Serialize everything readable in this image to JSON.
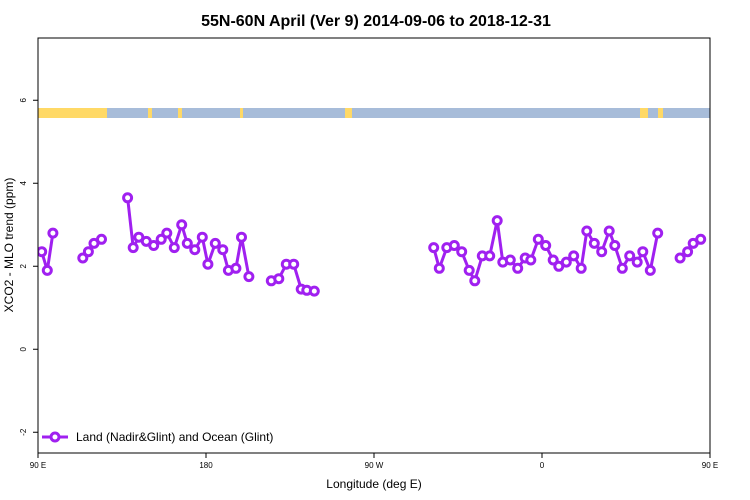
{
  "chart_data": {
    "type": "line",
    "title": "55N-60N April (Ver 9)   2014-09-06 to 2018-12-31",
    "xlabel": "Longitude (deg E)",
    "ylabel": "XCO2 - MLO trend (ppm)",
    "xlim": [
      90,
      450
    ],
    "ylim": [
      -2.5,
      7.5
    ],
    "x_ticks": [
      {
        "value": 90,
        "label": "90 E"
      },
      {
        "value": 180,
        "label": "180"
      },
      {
        "value": 270,
        "label": "90 W"
      },
      {
        "value": 360,
        "label": "0"
      },
      {
        "value": 450,
        "label": "90 E"
      },
      {
        "value": 540,
        "label": "180"
      }
    ],
    "y_ticks": [
      -2,
      0,
      2,
      4,
      6
    ],
    "grid": false,
    "legend_position": "bottom-left",
    "line_color": "#a020f0",
    "land_color": "#ffd966",
    "ocean_color": "#a7bcd9",
    "series": [
      {
        "name": "Land (Nadir&Glint) and Ocean (Glint)",
        "segments": [
          [
            [
              92,
              2.35
            ],
            [
              95,
              1.9
            ],
            [
              98,
              2.8
            ]
          ],
          [
            [
              114,
              2.2
            ],
            [
              117,
              2.35
            ],
            [
              120,
              2.55
            ],
            [
              124,
              2.65
            ]
          ],
          [
            [
              138,
              3.65
            ],
            [
              141,
              2.45
            ],
            [
              144,
              2.7
            ],
            [
              148,
              2.6
            ],
            [
              152,
              2.5
            ],
            [
              156,
              2.65
            ],
            [
              159,
              2.8
            ],
            [
              163,
              2.45
            ],
            [
              167,
              3.0
            ],
            [
              170,
              2.55
            ],
            [
              174,
              2.4
            ],
            [
              178,
              2.7
            ],
            [
              181,
              2.05
            ],
            [
              185,
              2.55
            ],
            [
              189,
              2.4
            ],
            [
              192,
              1.9
            ],
            [
              196,
              1.95
            ],
            [
              199,
              2.7
            ],
            [
              203,
              1.75
            ]
          ],
          [
            [
              215,
              1.65
            ],
            [
              219,
              1.7
            ],
            [
              223,
              2.05
            ],
            [
              227,
              2.05
            ],
            [
              231,
              1.45
            ],
            [
              234,
              1.42
            ],
            [
              238,
              1.4
            ]
          ],
          [
            [
              302,
              2.45
            ],
            [
              305,
              1.95
            ],
            [
              309,
              2.45
            ],
            [
              313,
              2.5
            ],
            [
              317,
              2.35
            ],
            [
              321,
              1.9
            ],
            [
              324,
              1.65
            ],
            [
              328,
              2.25
            ],
            [
              332,
              2.25
            ],
            [
              336,
              3.1
            ],
            [
              339,
              2.1
            ],
            [
              343,
              2.15
            ],
            [
              347,
              1.95
            ],
            [
              351,
              2.2
            ],
            [
              354,
              2.15
            ],
            [
              358,
              2.65
            ],
            [
              362,
              2.5
            ],
            [
              366,
              2.15
            ],
            [
              369,
              2.0
            ],
            [
              373,
              2.1
            ],
            [
              377,
              2.25
            ],
            [
              381,
              1.95
            ],
            [
              384,
              2.85
            ],
            [
              388,
              2.55
            ],
            [
              392,
              2.35
            ],
            [
              396,
              2.85
            ],
            [
              399,
              2.5
            ],
            [
              403,
              1.95
            ],
            [
              407,
              2.25
            ],
            [
              411,
              2.1
            ],
            [
              414,
              2.35
            ],
            [
              418,
              1.9
            ],
            [
              422,
              2.8
            ]
          ],
          [
            [
              434,
              2.2
            ],
            [
              438,
              2.35
            ],
            [
              441,
              2.55
            ],
            [
              445,
              2.65
            ]
          ],
          [
            [
              459,
              3.65
            ],
            [
              462,
              2.45
            ],
            [
              466,
              2.7
            ],
            [
              470,
              2.6
            ],
            [
              473,
              2.5
            ],
            [
              477,
              2.65
            ],
            [
              481,
              2.8
            ],
            [
              485,
              2.45
            ],
            [
              488,
              3.0
            ]
          ]
        ]
      }
    ]
  }
}
